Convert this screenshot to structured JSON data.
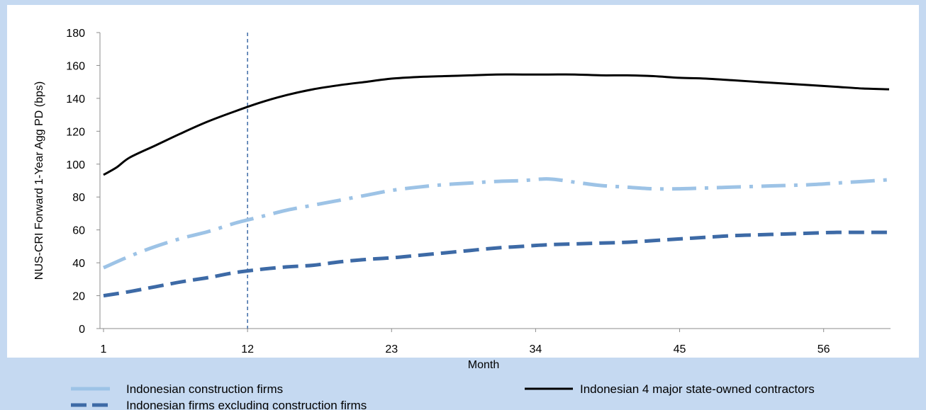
{
  "chart_data": {
    "type": "line",
    "xlabel": "Month",
    "ylabel": "NUS-CRI Forward 1-Year Agg PD (bps)",
    "ylim": [
      0,
      180
    ],
    "xlim": [
      1,
      61
    ],
    "yticks": [
      "0",
      "20",
      "40",
      "60",
      "80",
      "100",
      "120",
      "140",
      "160",
      "180"
    ],
    "xticks": [
      1,
      12,
      23,
      34,
      45,
      56
    ],
    "xtick_labels": [
      "1",
      "12",
      "23",
      "34",
      "45",
      "56"
    ],
    "reference_line_x": 12,
    "grid": false,
    "legend_position": "bottom",
    "colors": {
      "background": "#c5d9f1",
      "plot_area": "#ffffff",
      "construction": "#9dc3e6",
      "excluding": "#3d6aa6",
      "state_owned": "#000000",
      "reference_line": "#3d6aa6"
    },
    "series": [
      {
        "name": "Indonesian construction firms",
        "style": "dashdot",
        "color": "#9dc3e6",
        "x": [
          1,
          3,
          5,
          7,
          9,
          11,
          13,
          15,
          17,
          19,
          21,
          23,
          25,
          27,
          29,
          31,
          33,
          35,
          37,
          39,
          41,
          43,
          45,
          47,
          49,
          51,
          53,
          55,
          57,
          59,
          61
        ],
        "values": [
          37,
          44,
          50,
          55,
          59,
          64,
          68,
          72,
          75,
          78,
          81,
          84,
          86,
          87.5,
          88.5,
          89.5,
          90,
          91,
          89,
          87,
          86,
          85,
          85,
          85.5,
          86,
          86.5,
          87,
          87.5,
          88.5,
          89.5,
          90.5
        ]
      },
      {
        "name": "Indonesian firms excluding construction firms",
        "style": "dashed",
        "color": "#3d6aa6",
        "x": [
          1,
          3,
          5,
          7,
          9,
          11,
          13,
          15,
          17,
          19,
          21,
          23,
          25,
          27,
          29,
          31,
          33,
          35,
          37,
          39,
          41,
          43,
          45,
          47,
          49,
          51,
          53,
          55,
          57,
          59,
          61
        ],
        "values": [
          20,
          22.5,
          25.5,
          28.5,
          31,
          34,
          36,
          37.5,
          38.5,
          40.5,
          42,
          43,
          44.5,
          46,
          47.5,
          49,
          50,
          51,
          51.5,
          52,
          52.5,
          53.5,
          54.5,
          55.5,
          56.5,
          57,
          57.5,
          58,
          58.5,
          58.5,
          58.5
        ]
      },
      {
        "name": "Indonesian 4 major state-owned contractors",
        "style": "solid",
        "color": "#000000",
        "x": [
          1,
          2,
          3,
          5,
          7,
          9,
          11,
          13,
          15,
          17,
          19,
          21,
          23,
          25,
          27,
          29,
          31,
          33,
          35,
          37,
          39,
          41,
          43,
          45,
          47,
          49,
          51,
          53,
          55,
          57,
          59,
          61
        ],
        "values": [
          93.5,
          98,
          104,
          111.5,
          119,
          126,
          132,
          137.5,
          142,
          145.5,
          148,
          150,
          152,
          153,
          153.5,
          154,
          154.5,
          154.5,
          154.5,
          154.5,
          154,
          154,
          153.5,
          152.5,
          152,
          151,
          150,
          149,
          148,
          147,
          146,
          145.5
        ]
      }
    ]
  }
}
